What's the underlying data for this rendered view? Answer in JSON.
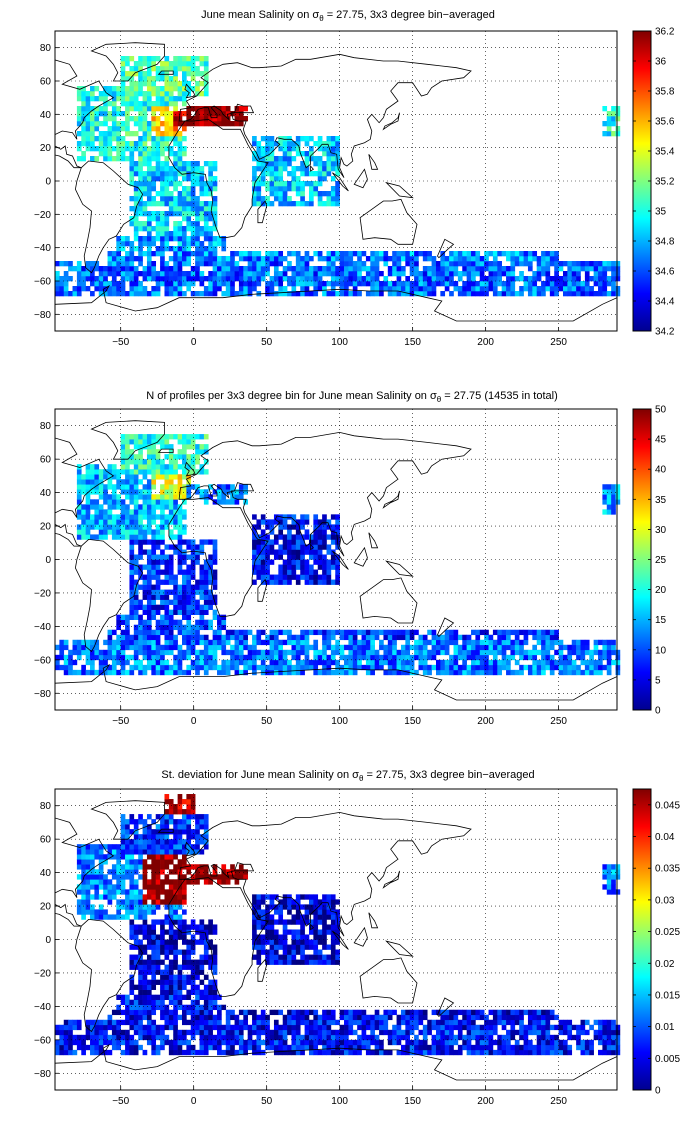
{
  "colors": {
    "land_outline": "#000000",
    "grid": "#000000",
    "background": "#ffffff",
    "colormap": "jet"
  },
  "chart_data": [
    {
      "type": "heatmap",
      "title_prefix": "June mean Salinity on σ",
      "title_sub": "θ",
      "title_suffix": " = 27.75, 3x3 degree bin−averaged",
      "xlim": [
        -95,
        290
      ],
      "ylim": [
        -90,
        90
      ],
      "xticks": [
        -50,
        0,
        50,
        100,
        150,
        200,
        250
      ],
      "yticks": [
        -80,
        -60,
        -40,
        -20,
        0,
        20,
        40,
        60,
        80
      ],
      "grid": true,
      "colorbar": {
        "min": 34.2,
        "max": 36.2,
        "ticks": [
          "34.2",
          "34.4",
          "34.6",
          "34.8",
          "35",
          "35.2",
          "35.4",
          "35.6",
          "35.8",
          "36",
          "36.2"
        ]
      },
      "regions": [
        {
          "lon": [
            -80,
            -5
          ],
          "lat": [
            10,
            55
          ],
          "value": 35.0
        },
        {
          "lon": [
            -30,
            -5
          ],
          "lat": [
            25,
            45
          ],
          "value": 35.5
        },
        {
          "lon": [
            -15,
            -5
          ],
          "lat": [
            30,
            42
          ],
          "value": 36.0
        },
        {
          "lon": [
            -50,
            10
          ],
          "lat": [
            50,
            75
          ],
          "value": 35.1
        },
        {
          "lon": [
            -5,
            35
          ],
          "lat": [
            31,
            44
          ],
          "value": 36.2
        },
        {
          "lon": [
            -45,
            15
          ],
          "lat": [
            -35,
            10
          ],
          "value": 34.85
        },
        {
          "lon": [
            -55,
            20
          ],
          "lat": [
            -50,
            -35
          ],
          "value": 34.75
        },
        {
          "lon": [
            40,
            100
          ],
          "lat": [
            -15,
            25
          ],
          "value": 34.85
        },
        {
          "lon": [
            -95,
            290
          ],
          "lat": [
            -70,
            -48
          ],
          "value": 34.65
        },
        {
          "lon": [
            -60,
            250
          ],
          "lat": [
            -50,
            -42
          ],
          "value": 34.7
        },
        {
          "lon": [
            278,
            290
          ],
          "lat": [
            25,
            45
          ],
          "value": 35.0
        }
      ]
    },
    {
      "type": "heatmap",
      "title_prefix": "N of profiles per 3x3 degree bin for June mean Salinity on σ",
      "title_sub": "θ",
      "title_suffix": " = 27.75 (14535 in total)",
      "xlim": [
        -95,
        290
      ],
      "ylim": [
        -90,
        90
      ],
      "xticks": [
        -50,
        0,
        50,
        100,
        150,
        200,
        250
      ],
      "yticks": [
        -80,
        -60,
        -40,
        -20,
        0,
        20,
        40,
        60,
        80
      ],
      "grid": true,
      "colorbar": {
        "min": 0,
        "max": 50,
        "ticks": [
          "0",
          "5",
          "10",
          "15",
          "20",
          "25",
          "30",
          "35",
          "40",
          "45",
          "50"
        ]
      },
      "regions": [
        {
          "lon": [
            -80,
            -5
          ],
          "lat": [
            10,
            55
          ],
          "value": 15
        },
        {
          "lon": [
            -30,
            0
          ],
          "lat": [
            35,
            75
          ],
          "value": 30
        },
        {
          "lon": [
            -5,
            35
          ],
          "lat": [
            31,
            44
          ],
          "value": 12
        },
        {
          "lon": [
            -50,
            10
          ],
          "lat": [
            50,
            75
          ],
          "value": 20
        },
        {
          "lon": [
            -45,
            15
          ],
          "lat": [
            -35,
            10
          ],
          "value": 8
        },
        {
          "lon": [
            -55,
            20
          ],
          "lat": [
            -50,
            -35
          ],
          "value": 10
        },
        {
          "lon": [
            40,
            100
          ],
          "lat": [
            -15,
            25
          ],
          "value": 6
        },
        {
          "lon": [
            -95,
            290
          ],
          "lat": [
            -70,
            -48
          ],
          "value": 12
        },
        {
          "lon": [
            -60,
            250
          ],
          "lat": [
            -50,
            -42
          ],
          "value": 9
        },
        {
          "lon": [
            278,
            290
          ],
          "lat": [
            25,
            45
          ],
          "value": 14
        }
      ]
    },
    {
      "type": "heatmap",
      "title_prefix": "St. deviation for June mean Salinity on σ",
      "title_sub": "θ",
      "title_suffix": " = 27.75, 3x3 degree bin−averaged",
      "xlim": [
        -95,
        290
      ],
      "ylim": [
        -90,
        90
      ],
      "xticks": [
        -50,
        0,
        50,
        100,
        150,
        200,
        250
      ],
      "yticks": [
        -80,
        -60,
        -40,
        -20,
        0,
        20,
        40,
        60,
        80
      ],
      "grid": true,
      "colorbar": {
        "min": 0,
        "max": 0.0475,
        "ticks": [
          "0",
          "0.005",
          "0.01",
          "0.015",
          "0.02",
          "0.025",
          "0.03",
          "0.035",
          "0.04",
          "0.045"
        ]
      },
      "regions": [
        {
          "lon": [
            -80,
            -5
          ],
          "lat": [
            10,
            55
          ],
          "value": 0.012
        },
        {
          "lon": [
            -35,
            -5
          ],
          "lat": [
            20,
            55
          ],
          "value": 0.047
        },
        {
          "lon": [
            -5,
            35
          ],
          "lat": [
            31,
            44
          ],
          "value": 0.047
        },
        {
          "lon": [
            -20,
            0
          ],
          "lat": [
            60,
            85
          ],
          "value": 0.045
        },
        {
          "lon": [
            -50,
            10
          ],
          "lat": [
            50,
            75
          ],
          "value": 0.008
        },
        {
          "lon": [
            -45,
            15
          ],
          "lat": [
            -35,
            10
          ],
          "value": 0.004
        },
        {
          "lon": [
            -55,
            20
          ],
          "lat": [
            -50,
            -35
          ],
          "value": 0.006
        },
        {
          "lon": [
            40,
            100
          ],
          "lat": [
            -15,
            25
          ],
          "value": 0.004
        },
        {
          "lon": [
            -95,
            290
          ],
          "lat": [
            -70,
            -48
          ],
          "value": 0.006
        },
        {
          "lon": [
            -60,
            250
          ],
          "lat": [
            -50,
            -42
          ],
          "value": 0.005
        },
        {
          "lon": [
            278,
            290
          ],
          "lat": [
            25,
            45
          ],
          "value": 0.012
        }
      ]
    }
  ]
}
